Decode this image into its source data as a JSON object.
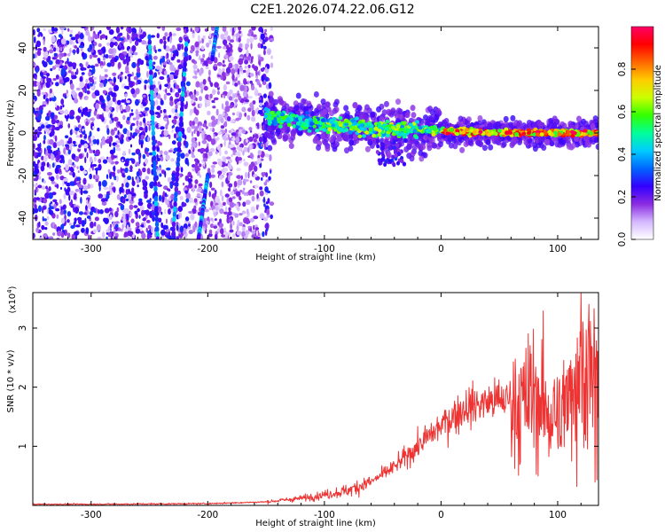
{
  "chart_data": [
    {
      "type": "heatmap",
      "title": "C2E1.2026.074.22.06.G12",
      "xlabel": "Height of straight line (km)",
      "ylabel": "Frequency (Hz)",
      "xlim": [
        -350,
        135
      ],
      "ylim": [
        -50,
        50
      ],
      "xticks": [
        -300,
        -200,
        -100,
        0,
        100
      ],
      "yticks": [
        -40,
        -20,
        0,
        20,
        40
      ],
      "colorbar": {
        "label": "Normalized spectral amplitude",
        "range": [
          0,
          1
        ],
        "ticks": [
          "0.0",
          "0.2",
          "0.4",
          "0.6",
          "0.8"
        ],
        "colors": [
          "#ffffff",
          "#d4b8ff",
          "#8a2be2",
          "#3300ff",
          "#0066ff",
          "#00ccff",
          "#00ff99",
          "#33ff00",
          "#ccff00",
          "#ffcc00",
          "#ff6600",
          "#ff0000",
          "#ff0066"
        ]
      },
      "features": [
        {
          "name": "scatter region",
          "x_range": [
            -350,
            -150
          ],
          "y_range": [
            -50,
            50
          ]
        },
        {
          "name": "main band centre",
          "x": [
            -150,
            -120,
            -80,
            -40,
            0,
            40,
            80,
            135
          ],
          "y": [
            8,
            5,
            3,
            2,
            1,
            0.5,
            0,
            0
          ]
        }
      ]
    },
    {
      "type": "line",
      "xlabel": "Height of straight line (km)",
      "ylabel": "SNR (10 * v/v)",
      "y_exponent": "(x10",
      "y_exponent_power": "4",
      "y_exponent_close": ")",
      "xlim": [
        -350,
        135
      ],
      "ylim": [
        0,
        3.6
      ],
      "xticks": [
        -300,
        -200,
        -100,
        0,
        100
      ],
      "yticks": [
        1,
        2,
        3
      ],
      "color": "#ee3333",
      "series": [
        {
          "name": "SNR",
          "x": [
            -350,
            -300,
            -200,
            -150,
            -120,
            -100,
            -80,
            -60,
            -40,
            -20,
            0,
            20,
            40,
            60,
            70,
            80,
            90,
            100,
            110,
            120,
            135
          ],
          "values": [
            0.02,
            0.02,
            0.03,
            0.06,
            0.12,
            0.18,
            0.25,
            0.4,
            0.65,
            1.0,
            1.35,
            1.65,
            1.75,
            1.8,
            1.7,
            1.9,
            1.6,
            1.4,
            2.1,
            2.4,
            1.9
          ]
        }
      ]
    }
  ]
}
